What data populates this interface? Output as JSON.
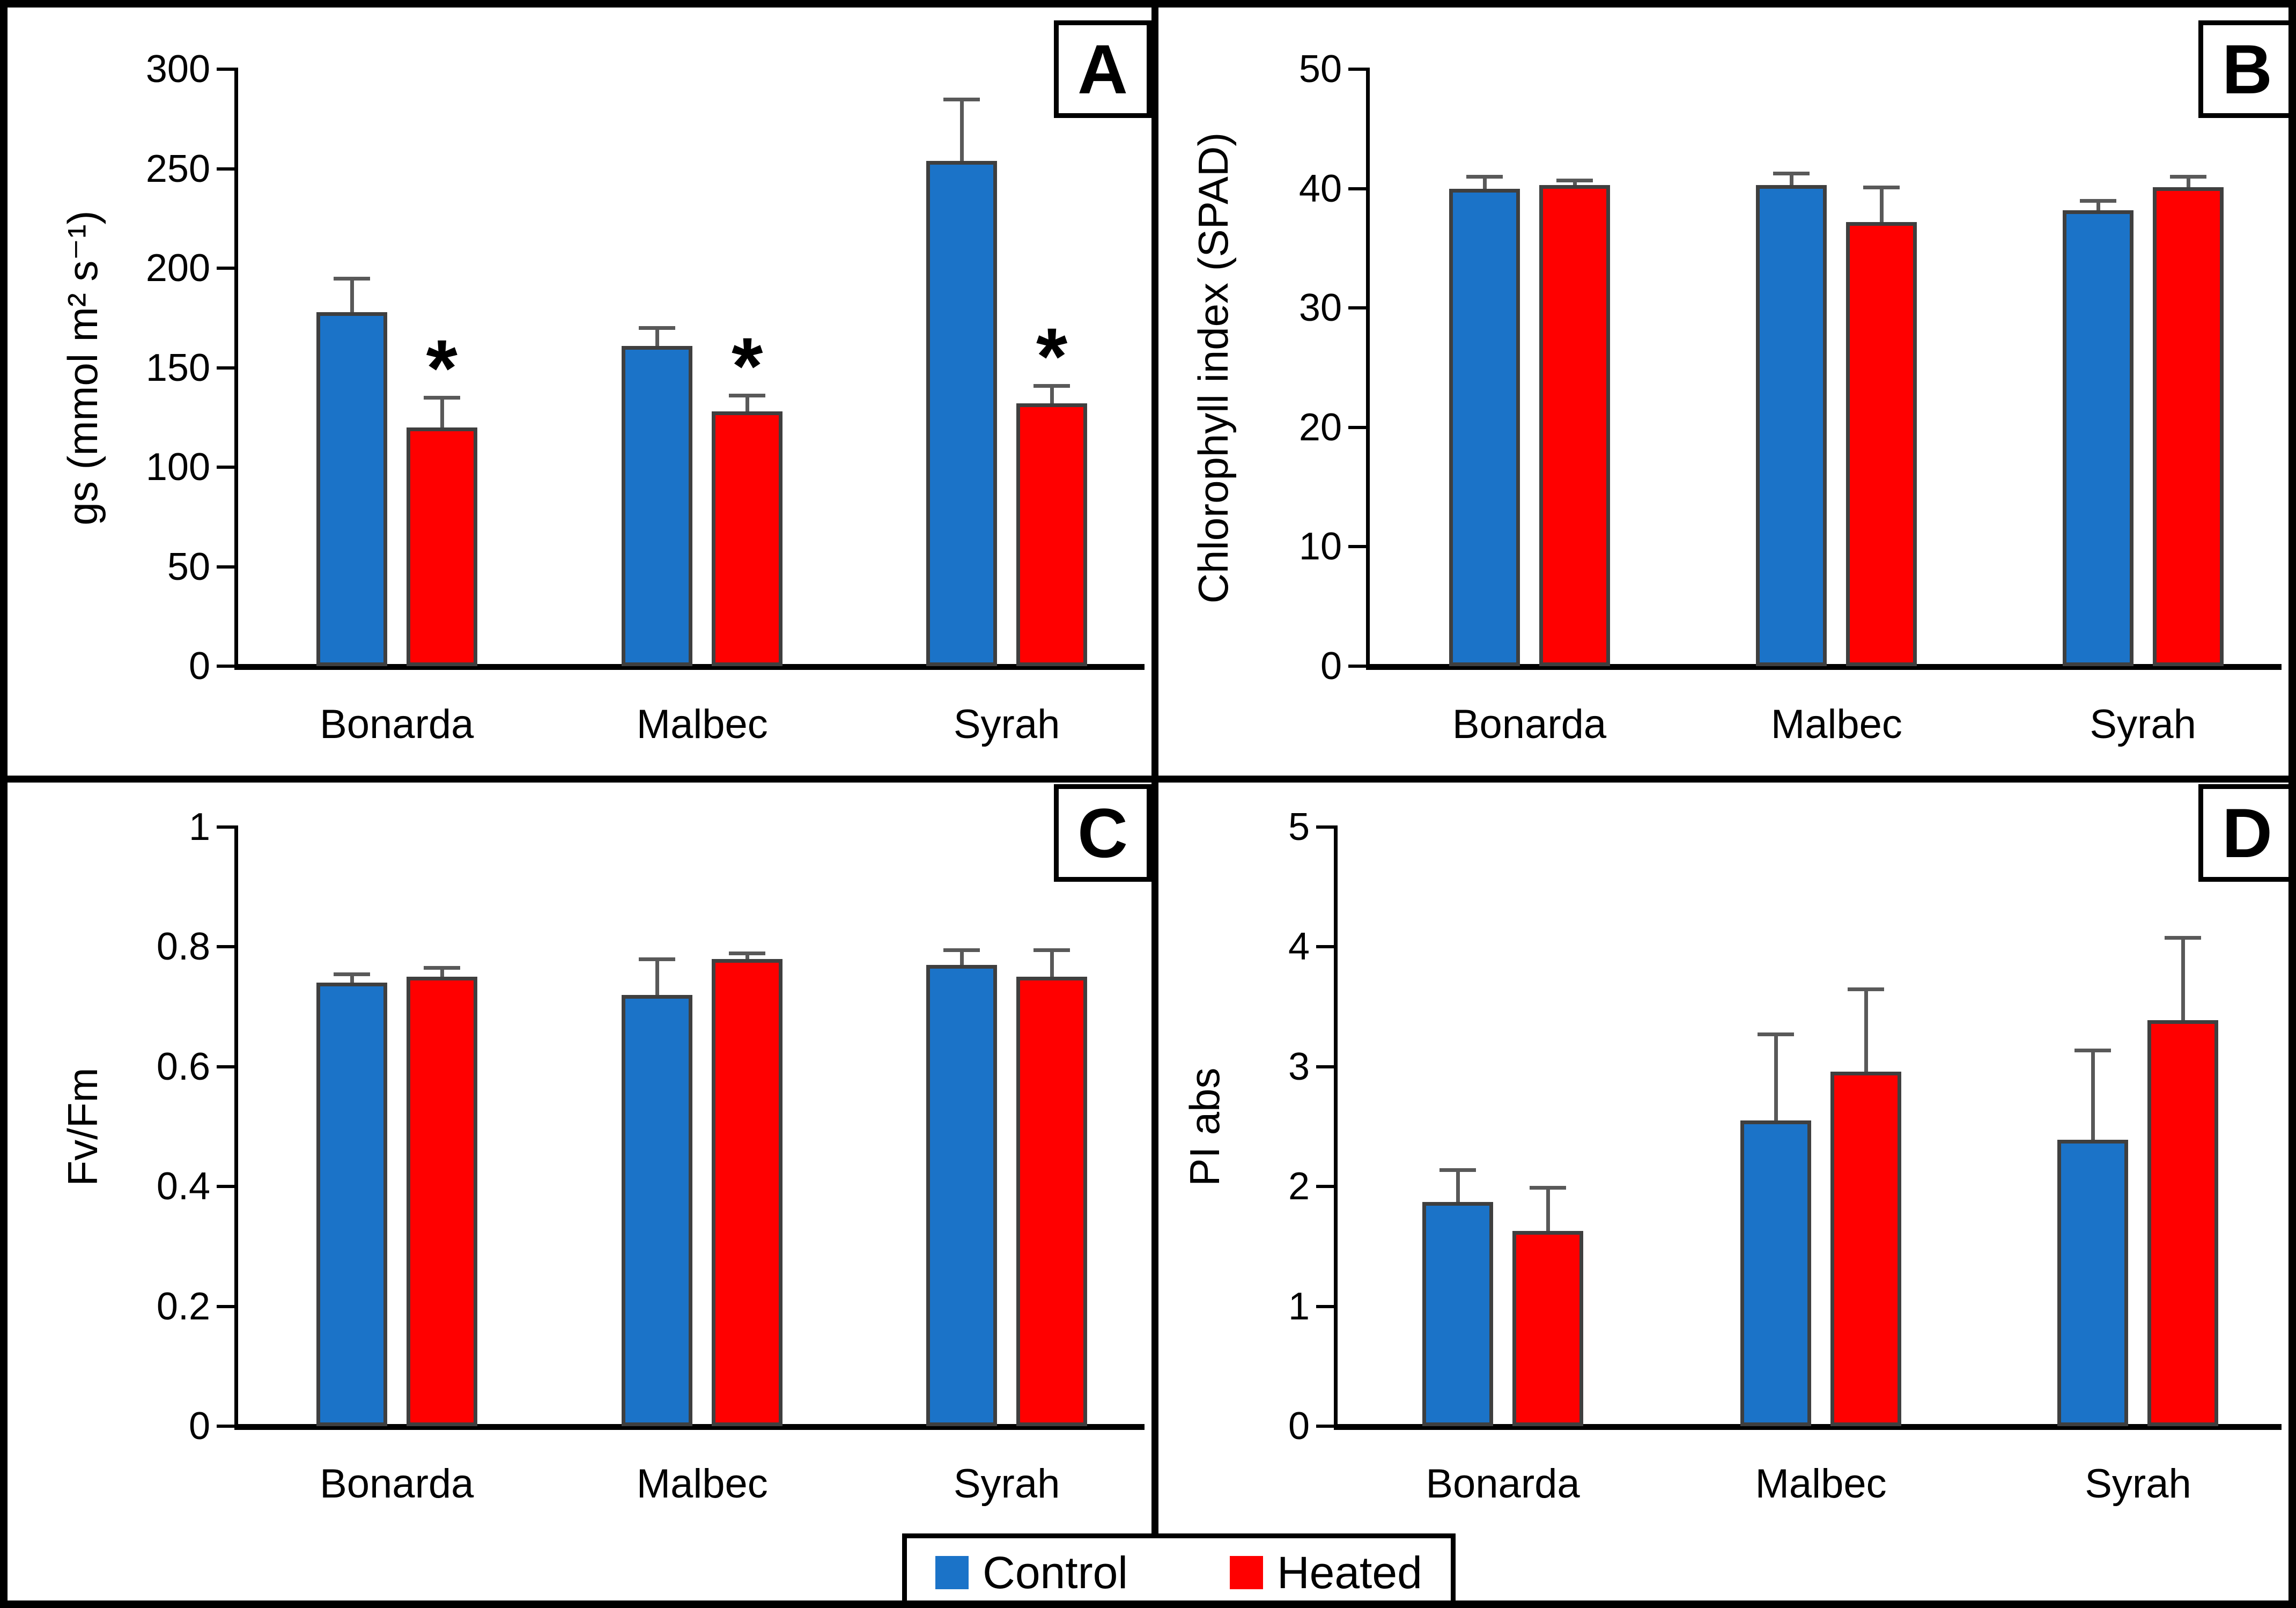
{
  "figure": {
    "colors": {
      "control": "#1B73C8",
      "heated": "#FF0000",
      "bar_border": "#3F3F3F",
      "error_bar": "#595959",
      "axis": "#000000"
    },
    "legend": {
      "items": [
        {
          "label": "Control",
          "color": "#1B73C8"
        },
        {
          "label": "Heated",
          "color": "#FF0000"
        }
      ]
    }
  },
  "chart_data": [
    {
      "type": "bar",
      "panel_label": "A",
      "ylabel": "gs (mmol m² s⁻¹)",
      "xlabel": "",
      "categories": [
        "Bonarda",
        "Malbec",
        "Syrah"
      ],
      "series": [
        {
          "name": "Control",
          "color": "#1B73C8",
          "values": [
            178,
            161,
            254
          ],
          "errors": [
            17,
            9,
            31
          ]
        },
        {
          "name": "Heated",
          "color": "#FF0000",
          "values": [
            120,
            128,
            132
          ],
          "errors": [
            15,
            8,
            9
          ]
        }
      ],
      "significance": {
        "marker": "*",
        "on_series": "Heated",
        "groups": [
          true,
          true,
          true
        ]
      },
      "ylim": [
        0,
        300
      ],
      "yticks": [
        0,
        50,
        100,
        150,
        200,
        250,
        300
      ],
      "grid": false,
      "legend_position": "shared-bottom"
    },
    {
      "type": "bar",
      "panel_label": "B",
      "ylabel": "Chlorophyll index (SPAD)",
      "xlabel": "",
      "categories": [
        "Bonarda",
        "Malbec",
        "Syrah"
      ],
      "series": [
        {
          "name": "Control",
          "color": "#1B73C8",
          "values": [
            40.0,
            40.3,
            38.2
          ],
          "errors": [
            1.0,
            1.0,
            0.8
          ]
        },
        {
          "name": "Heated",
          "color": "#FF0000",
          "values": [
            40.3,
            37.2,
            40.1
          ],
          "errors": [
            0.4,
            2.9,
            0.9
          ]
        }
      ],
      "significance": null,
      "ylim": [
        0,
        50
      ],
      "yticks": [
        0,
        10,
        20,
        30,
        40,
        50
      ],
      "grid": false,
      "legend_position": "shared-bottom"
    },
    {
      "type": "bar",
      "panel_label": "C",
      "ylabel": "Fv/Fm",
      "xlabel": "",
      "categories": [
        "Bonarda",
        "Malbec",
        "Syrah"
      ],
      "series": [
        {
          "name": "Control",
          "color": "#1B73C8",
          "values": [
            0.74,
            0.72,
            0.77
          ],
          "errors": [
            0.015,
            0.06,
            0.025
          ]
        },
        {
          "name": "Heated",
          "color": "#FF0000",
          "values": [
            0.75,
            0.78,
            0.75
          ],
          "errors": [
            0.015,
            0.01,
            0.045
          ]
        }
      ],
      "significance": null,
      "ylim": [
        0,
        1
      ],
      "yticks": [
        0,
        0.2,
        0.4,
        0.6,
        0.8,
        1
      ],
      "grid": false,
      "legend_position": "shared-bottom"
    },
    {
      "type": "bar",
      "panel_label": "D",
      "ylabel": "PI abs",
      "xlabel": "",
      "categories": [
        "Bonarda",
        "Malbec",
        "Syrah"
      ],
      "series": [
        {
          "name": "Control",
          "color": "#1B73C8",
          "values": [
            1.87,
            2.55,
            2.39
          ],
          "errors": [
            0.27,
            0.72,
            0.75
          ]
        },
        {
          "name": "Heated",
          "color": "#FF0000",
          "values": [
            1.63,
            2.96,
            3.39
          ],
          "errors": [
            0.36,
            0.69,
            0.69
          ]
        }
      ],
      "significance": null,
      "ylim": [
        0,
        5
      ],
      "yticks": [
        0,
        1,
        2,
        3,
        4,
        5
      ],
      "grid": false,
      "legend_position": "shared-bottom"
    }
  ]
}
